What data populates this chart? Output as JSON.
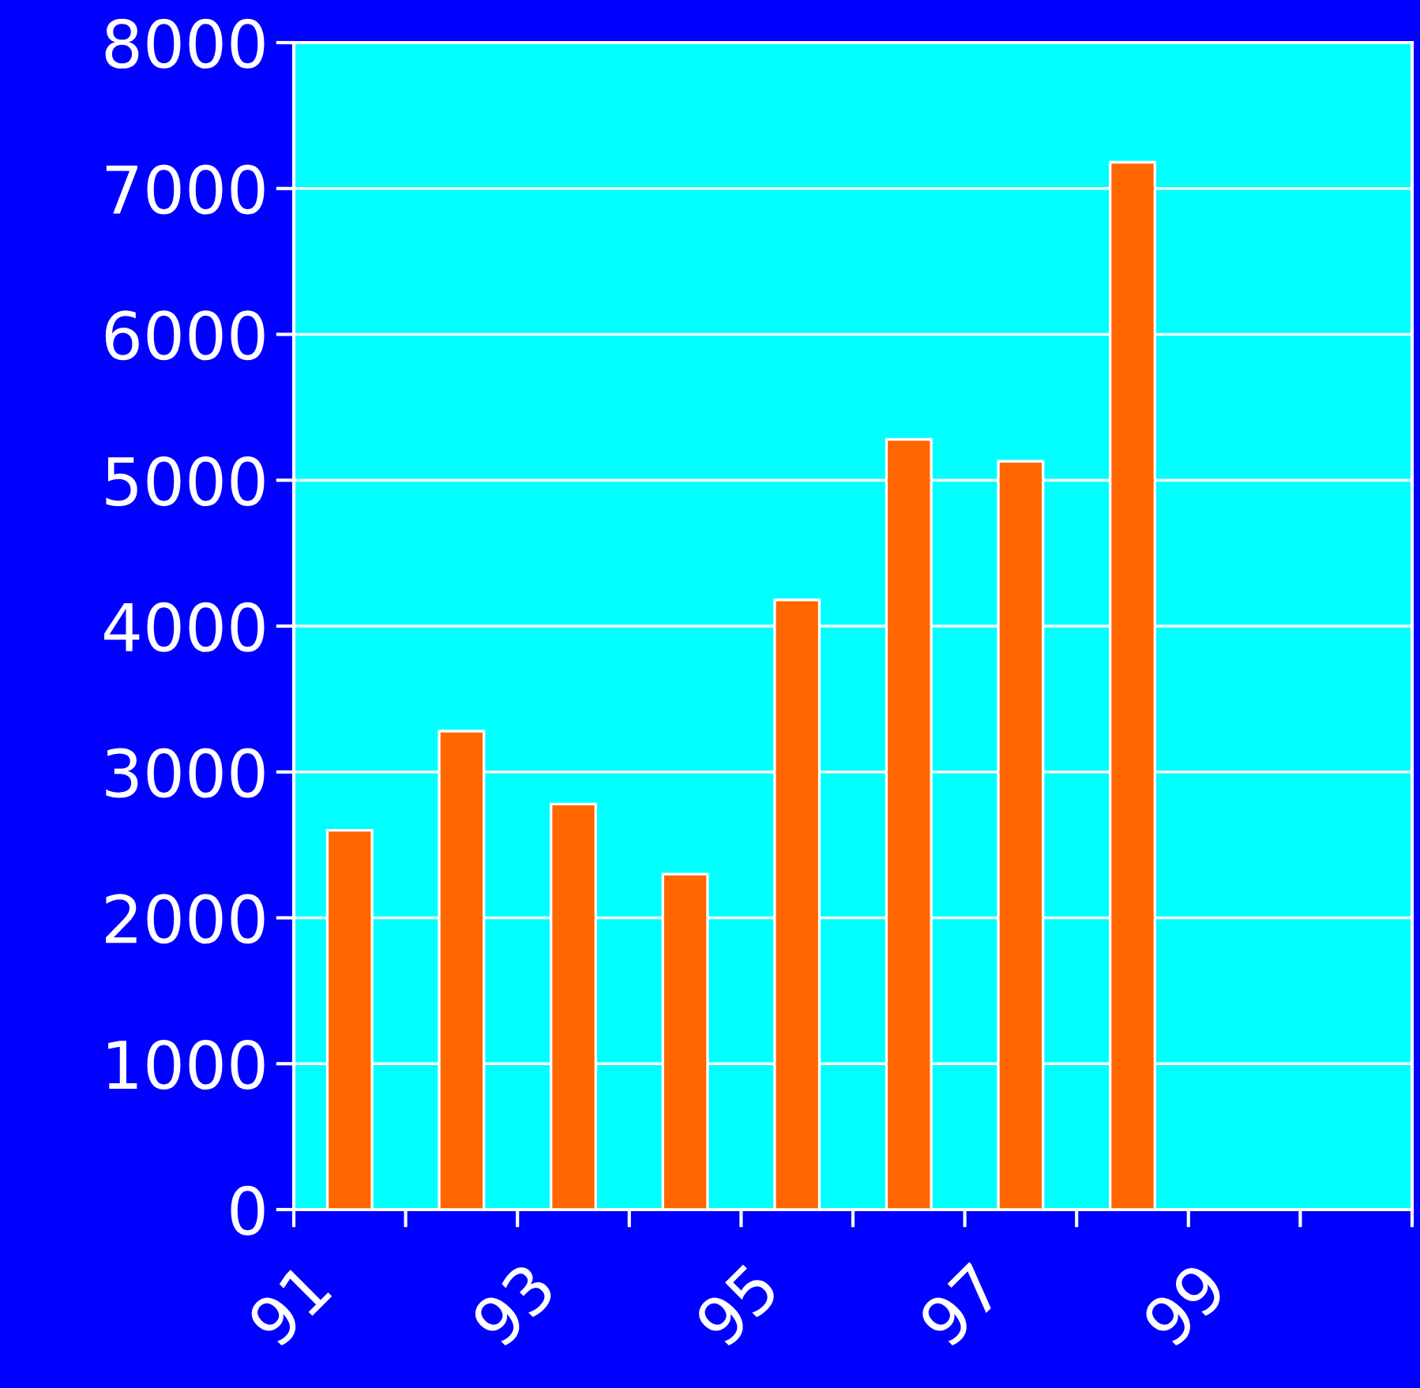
{
  "chart_data": {
    "type": "bar",
    "categories": [
      "91",
      null,
      "93",
      null,
      "95",
      null,
      "97",
      null,
      "99",
      null
    ],
    "values": [
      2600,
      3280,
      2780,
      2300,
      4180,
      5280,
      5130,
      7180,
      null,
      null
    ],
    "color": "#ff6600",
    "ylim": [
      0,
      8000
    ],
    "yticks": [
      0,
      1000,
      2000,
      3000,
      4000,
      5000,
      6000,
      7000,
      8000
    ],
    "grid": "y"
  }
}
